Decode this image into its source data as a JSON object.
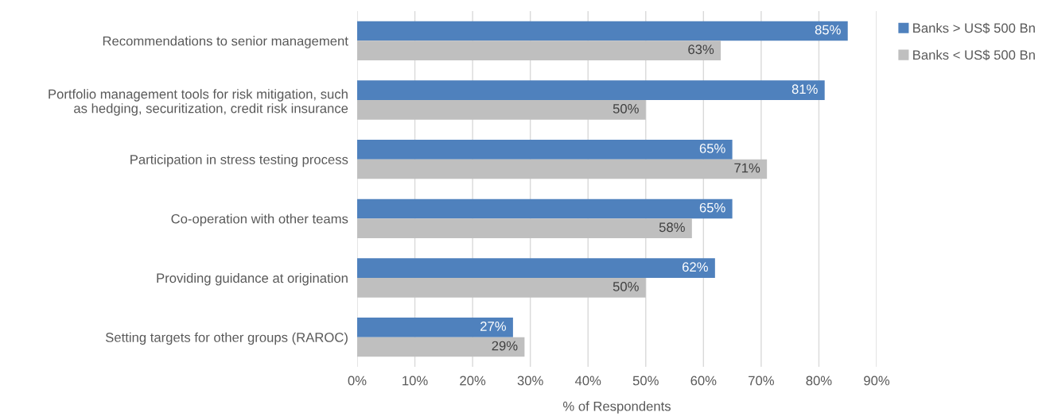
{
  "chart_data": {
    "type": "bar",
    "orientation": "horizontal",
    "xlabel": "% of Respondents",
    "categories": [
      "Recommendations to senior management",
      "Portfolio management tools for risk mitigation, such\nas hedging, securitization, credit risk insurance",
      "Participation in stress testing process",
      "Co-operation with other teams",
      "Providing guidance at origination",
      "Setting targets for other groups (RAROC)"
    ],
    "series": [
      {
        "name": "Banks > US$ 500 Bn",
        "color": "#4f81bd",
        "values": [
          85,
          81,
          65,
          65,
          62,
          27
        ],
        "value_labels": [
          "85%",
          "81%",
          "65%",
          "65%",
          "62%",
          "27%"
        ]
      },
      {
        "name": "Banks < US$ 500 Bn",
        "color": "#bfbfbf",
        "values": [
          63,
          50,
          71,
          58,
          50,
          29
        ],
        "value_labels": [
          "63%",
          "50%",
          "71%",
          "58%",
          "50%",
          "29%"
        ]
      }
    ],
    "xlim": [
      0,
      90
    ],
    "xticks": [
      {
        "value": 0,
        "label": "0%"
      },
      {
        "value": 10,
        "label": "10%"
      },
      {
        "value": 20,
        "label": "20%"
      },
      {
        "value": 30,
        "label": "30%"
      },
      {
        "value": 40,
        "label": "40%"
      },
      {
        "value": 50,
        "label": "50%"
      },
      {
        "value": 60,
        "label": "60%"
      },
      {
        "value": 70,
        "label": "70%"
      },
      {
        "value": 80,
        "label": "80%"
      },
      {
        "value": 90,
        "label": "90%"
      }
    ],
    "grid": "x",
    "legend": "top right"
  }
}
